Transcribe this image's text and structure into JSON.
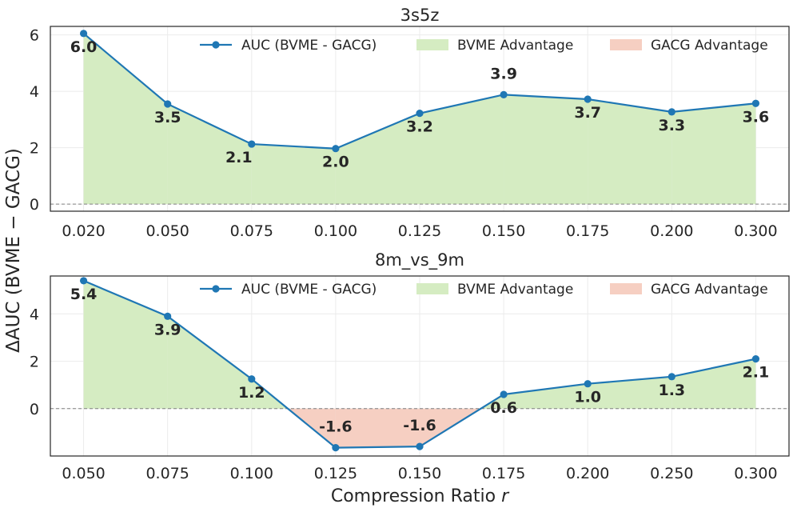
{
  "figure": {
    "ylabel": "ΔAUC (BVME − GACG)",
    "xlabel_text": "Compression Ratio ",
    "xlabel_var": "r"
  },
  "colors": {
    "line": "#1f77b4",
    "adv_pos": "#d5ecc2",
    "adv_neg": "#f6cfc2",
    "frame": "#262626",
    "zero": "#808080",
    "text": "#262626"
  },
  "chart_data": [
    {
      "type": "line",
      "title": "3s5z",
      "xlabel": "",
      "ylabel": "ΔAUC (BVME − GACG)",
      "categories": [
        "0.020",
        "0.050",
        "0.075",
        "0.100",
        "0.125",
        "0.150",
        "0.175",
        "0.200",
        "0.300"
      ],
      "values": [
        6.05,
        3.55,
        2.13,
        1.97,
        3.22,
        3.88,
        3.72,
        3.27,
        3.57
      ],
      "data_labels": [
        "6.0",
        "3.5",
        "2.1",
        "2.0",
        "3.2",
        "3.9",
        "3.7",
        "3.3",
        "3.6"
      ],
      "ylim": [
        -0.25,
        6.3
      ],
      "yticks": [
        0,
        2,
        4,
        6
      ],
      "ytick_labels": [
        "0",
        "2",
        "4",
        "6"
      ],
      "legend": [
        "AUC (BVME - GACG)",
        "BVME Advantage",
        "GACG Advantage"
      ],
      "legend_position": "top-right",
      "grid": true
    },
    {
      "type": "line",
      "title": "8m_vs_9m",
      "xlabel": "Compression Ratio r",
      "ylabel": "ΔAUC (BVME − GACG)",
      "categories": [
        "0.050",
        "0.075",
        "0.100",
        "0.125",
        "0.150",
        "0.175",
        "0.200",
        "0.250",
        "0.300"
      ],
      "values": [
        5.4,
        3.9,
        1.25,
        -1.65,
        -1.6,
        0.6,
        1.05,
        1.35,
        2.1
      ],
      "data_labels": [
        "5.4",
        "3.9",
        "1.2",
        "-1.6",
        "-1.6",
        "0.6",
        "1.0",
        "1.3",
        "2.1"
      ],
      "ylim": [
        -2.0,
        5.6
      ],
      "yticks": [
        0,
        2,
        4
      ],
      "ytick_labels": [
        "0",
        "2",
        "4"
      ],
      "legend": [
        "AUC (BVME - GACG)",
        "BVME Advantage",
        "GACG Advantage"
      ],
      "legend_position": "top-right",
      "grid": true
    }
  ]
}
